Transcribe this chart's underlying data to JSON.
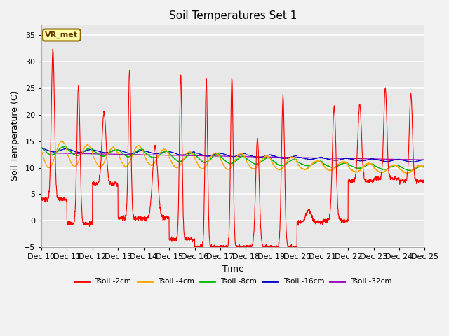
{
  "title": "Soil Temperatures Set 1",
  "xlabel": "Time",
  "ylabel": "Soil Temperature (C)",
  "ylim": [
    -5,
    37
  ],
  "yticks": [
    -5,
    0,
    5,
    10,
    15,
    20,
    25,
    30,
    35
  ],
  "xlim": [
    0,
    15
  ],
  "xtick_labels": [
    "Dec 10",
    "Dec 11",
    "Dec 12",
    "Dec 13",
    "Dec 14",
    "Dec 15",
    "Dec 16",
    "Dec 17",
    "Dec 18",
    "Dec 19",
    "Dec 20",
    "Dec 21",
    "Dec 22",
    "Dec 23",
    "Dec 24",
    "Dec 25"
  ],
  "legend_label": "VR_met",
  "series_labels": [
    "Tsoil -2cm",
    "Tsoil -4cm",
    "Tsoil -8cm",
    "Tsoil -16cm",
    "Tsoil -32cm"
  ],
  "series_colors": [
    "#ff0000",
    "#ffa500",
    "#00bb00",
    "#0000cc",
    "#9900bb"
  ],
  "background_color": "#e8e8e8",
  "grid_color": "#ffffff",
  "title_fontsize": 11,
  "axis_fontsize": 9,
  "tick_fontsize": 8,
  "fig_width": 6.4,
  "fig_height": 4.8,
  "fig_dpi": 100
}
